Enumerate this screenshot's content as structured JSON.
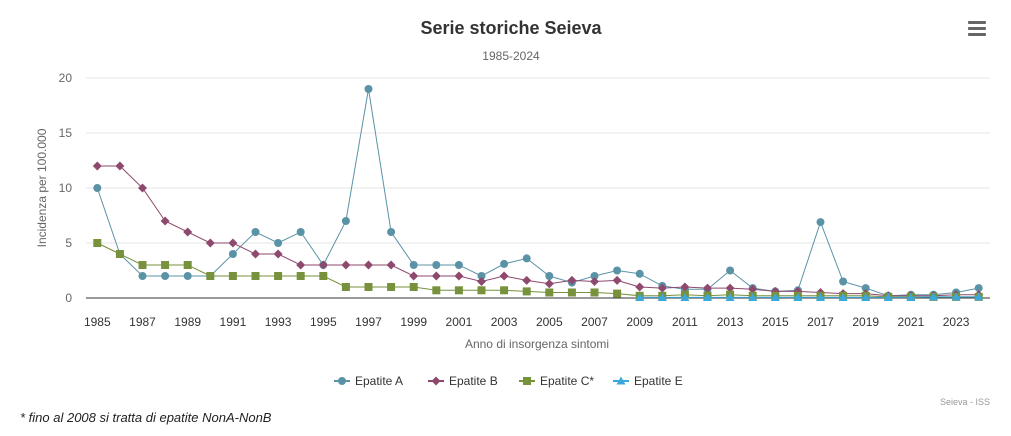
{
  "menu_icon": "hamburger-menu-icon",
  "footnote": "* fino al 2008 si tratta di epatite NonA-NonB",
  "chart_data": {
    "type": "line",
    "title": "Serie storiche Seieva",
    "subtitle": "1985-2024",
    "xlabel": "Anno di insorgenza sintomi",
    "ylabel": "Incidenza per 100.000",
    "credits": "Seieva - ISS",
    "ylim": [
      0,
      20
    ],
    "yticks": [
      0,
      5,
      10,
      15,
      20
    ],
    "xticks": [
      "1985",
      "1987",
      "1989",
      "1991",
      "1993",
      "1995",
      "1997",
      "1999",
      "2001",
      "2003",
      "2005",
      "2007",
      "2009",
      "2011",
      "2013",
      "2015",
      "2017",
      "2019",
      "2021",
      "2023"
    ],
    "x": [
      1985,
      1986,
      1987,
      1988,
      1989,
      1990,
      1991,
      1992,
      1993,
      1994,
      1995,
      1996,
      1997,
      1998,
      1999,
      2000,
      2001,
      2002,
      2003,
      2004,
      2005,
      2006,
      2007,
      2008,
      2009,
      2010,
      2011,
      2012,
      2013,
      2014,
      2015,
      2016,
      2017,
      2018,
      2019,
      2020,
      2021,
      2022,
      2023,
      2024
    ],
    "grid": true,
    "legend_position": "bottom-center",
    "series": [
      {
        "name": "Epatite A",
        "color": "#5b93a6",
        "marker": "circle",
        "x": [
          1985,
          1986,
          1987,
          1988,
          1989,
          1990,
          1991,
          1992,
          1993,
          1994,
          1995,
          1996,
          1997,
          1998,
          1999,
          2000,
          2001,
          2002,
          2003,
          2004,
          2005,
          2006,
          2007,
          2008,
          2009,
          2010,
          2011,
          2012,
          2013,
          2014,
          2015,
          2016,
          2017,
          2018,
          2019,
          2020,
          2021,
          2022,
          2023,
          2024
        ],
        "values": [
          10,
          4,
          2,
          2,
          2,
          2,
          4,
          6,
          5,
          6,
          3,
          7,
          19,
          6,
          3,
          3,
          3,
          2,
          3.1,
          3.6,
          2,
          1.4,
          2,
          2.5,
          2.2,
          1.1,
          0.8,
          0.8,
          2.5,
          0.9,
          0.6,
          0.7,
          6.9,
          1.5,
          0.9,
          0.2,
          0.3,
          0.3,
          0.5,
          0.9
        ]
      },
      {
        "name": "Epatite B",
        "color": "#8e4a6e",
        "marker": "diamond",
        "x": [
          1985,
          1986,
          1987,
          1988,
          1989,
          1990,
          1991,
          1992,
          1993,
          1994,
          1995,
          1996,
          1997,
          1998,
          1999,
          2000,
          2001,
          2002,
          2003,
          2004,
          2005,
          2006,
          2007,
          2008,
          2009,
          2010,
          2011,
          2012,
          2013,
          2014,
          2015,
          2016,
          2017,
          2018,
          2019,
          2020,
          2021,
          2022,
          2023,
          2024
        ],
        "values": [
          12,
          12,
          10,
          7,
          6,
          5,
          5,
          4,
          4,
          3,
          3,
          3,
          3,
          3,
          2,
          2,
          2,
          1.5,
          2,
          1.6,
          1.3,
          1.6,
          1.5,
          1.6,
          1,
          0.9,
          1,
          0.9,
          0.9,
          0.8,
          0.6,
          0.6,
          0.5,
          0.4,
          0.4,
          0.2,
          0.2,
          0.2,
          0.3,
          0.3
        ]
      },
      {
        "name": "Epatite C*",
        "color": "#77913d",
        "marker": "square",
        "x": [
          1985,
          1986,
          1987,
          1988,
          1989,
          1990,
          1991,
          1992,
          1993,
          1994,
          1995,
          1996,
          1997,
          1998,
          1999,
          2000,
          2001,
          2002,
          2003,
          2004,
          2005,
          2006,
          2007,
          2008,
          2009,
          2010,
          2011,
          2012,
          2013,
          2014,
          2015,
          2016,
          2017,
          2018,
          2019,
          2020,
          2021,
          2022,
          2023,
          2024
        ],
        "values": [
          5,
          4,
          3,
          3,
          3,
          2,
          2,
          2,
          2,
          2,
          2,
          1,
          1,
          1,
          1,
          0.7,
          0.7,
          0.7,
          0.7,
          0.6,
          0.5,
          0.5,
          0.5,
          0.4,
          0.2,
          0.2,
          0.3,
          0.2,
          0.3,
          0.2,
          0.2,
          0.2,
          0.2,
          0.2,
          0.2,
          0.1,
          0.1,
          0.1,
          0.1,
          0.1
        ]
      },
      {
        "name": "Epatite E",
        "color": "#3ba8dc",
        "marker": "triangle",
        "x": [
          2009,
          2010,
          2011,
          2012,
          2013,
          2014,
          2015,
          2016,
          2017,
          2018,
          2019,
          2020,
          2021,
          2022,
          2023,
          2024
        ],
        "values": [
          0.05,
          0.05,
          0.05,
          0.05,
          0.05,
          0.05,
          0.05,
          0.05,
          0.05,
          0.05,
          0.05,
          0.05,
          0.05,
          0.1,
          0.1,
          0.1
        ]
      }
    ]
  }
}
